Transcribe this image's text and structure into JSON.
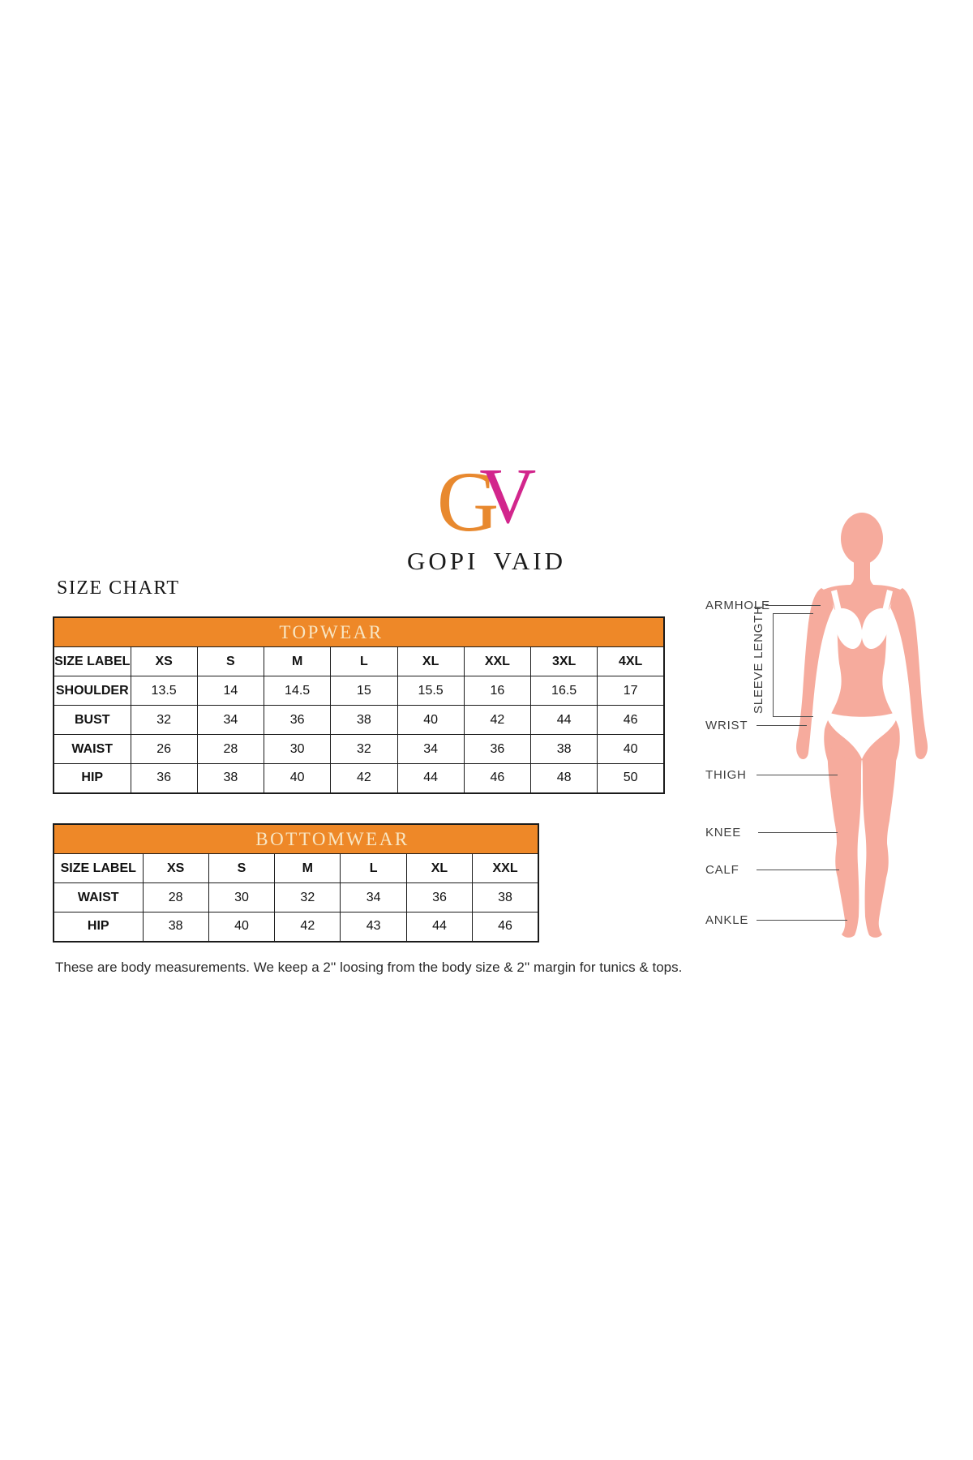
{
  "brand": {
    "logo_g": "G",
    "logo_v": "V",
    "name": "GOPI VAID"
  },
  "page_title": "SIZE CHART",
  "topwear": {
    "title": "TOPWEAR",
    "header": [
      "SIZE LABEL",
      "XS",
      "S",
      "M",
      "L",
      "XL",
      "XXL",
      "3XL",
      "4XL"
    ],
    "rows": [
      {
        "label": "SHOULDER",
        "values": [
          "13.5",
          "14",
          "14.5",
          "15",
          "15.5",
          "16",
          "16.5",
          "17"
        ]
      },
      {
        "label": "BUST",
        "values": [
          "32",
          "34",
          "36",
          "38",
          "40",
          "42",
          "44",
          "46"
        ]
      },
      {
        "label": "WAIST",
        "values": [
          "26",
          "28",
          "30",
          "32",
          "34",
          "36",
          "38",
          "40"
        ]
      },
      {
        "label": "HIP",
        "values": [
          "36",
          "38",
          "40",
          "42",
          "44",
          "46",
          "48",
          "50"
        ]
      }
    ]
  },
  "bottomwear": {
    "title": "BOTTOMWEAR",
    "header": [
      "SIZE LABEL",
      "XS",
      "S",
      "M",
      "L",
      "XL",
      "XXL"
    ],
    "rows": [
      {
        "label": "WAIST",
        "values": [
          "28",
          "30",
          "32",
          "34",
          "36",
          "38"
        ]
      },
      {
        "label": "HIP",
        "values": [
          "38",
          "40",
          "42",
          "43",
          "44",
          "46"
        ]
      }
    ]
  },
  "figure": {
    "armhole": "ARMHOLE",
    "sleeve_length": "SLEEVE LENGTH",
    "wrist": "WRIST",
    "thigh": "THIGH",
    "knee": "KNEE",
    "calf": "CALF",
    "ankle": "ANKLE"
  },
  "note": "These are body measurements. We keep a 2'' loosing from the body size & 2'' margin for tunics & tops.",
  "colors": {
    "table_header_orange": "#EE8828",
    "table_header_text": "#F8E6C4",
    "logo_orange": "#E8892F",
    "logo_magenta": "#D2268C",
    "body_tone": "#F6AB9D",
    "line_gray": "#4C4C4C"
  }
}
